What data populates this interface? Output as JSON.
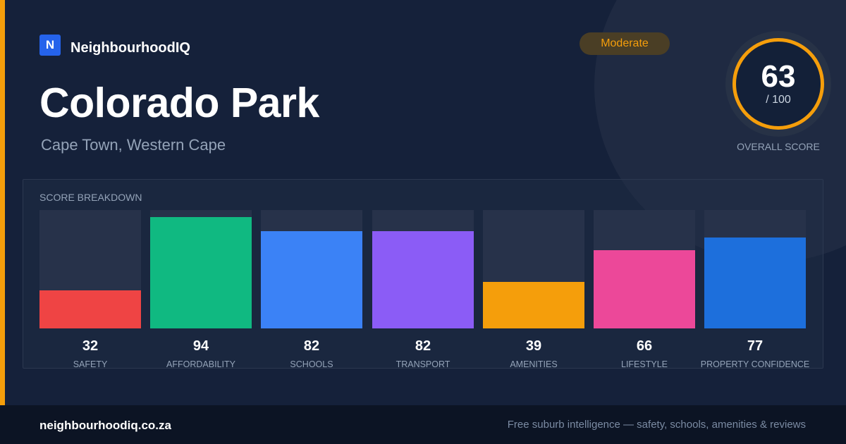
{
  "brand": {
    "logo_letter": "N",
    "name": "NeighbourhoodIQ"
  },
  "suburb": {
    "name": "Colorado Park",
    "location": "Cape Town, Western Cape"
  },
  "rating": {
    "label": "Moderate",
    "color": "#f59e0b"
  },
  "overall": {
    "score": "63",
    "max": "/ 100",
    "caption": "OVERALL SCORE"
  },
  "breakdown": {
    "title": "SCORE BREAKDOWN"
  },
  "chart_data": {
    "type": "bar",
    "categories": [
      "SAFETY",
      "AFFORDABILITY",
      "SCHOOLS",
      "TRANSPORT",
      "AMENITIES",
      "LIFESTYLE",
      "PROPERTY CONFIDENCE"
    ],
    "values": [
      32,
      94,
      82,
      82,
      39,
      66,
      77
    ],
    "colors": [
      "#ef4444",
      "#10b981",
      "#3b82f6",
      "#8b5cf6",
      "#f59e0b",
      "#ec4899",
      "#1d6fdc"
    ],
    "ylim": [
      0,
      100
    ]
  },
  "footer": {
    "domain": "neighbourhoodiq.co.za",
    "tagline": "Free suburb intelligence — safety, schools, amenities & reviews"
  },
  "colors": {
    "accent": "#f59e0b",
    "background": "#15213a",
    "footer": "#0c1424"
  }
}
